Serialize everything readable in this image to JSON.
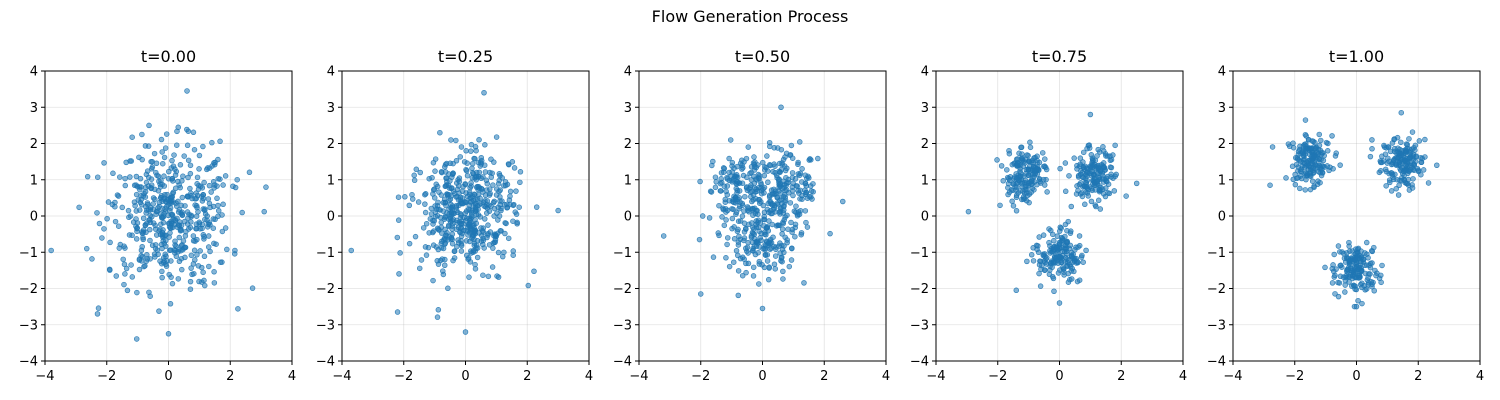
{
  "figure_title": "Flow Generation Process",
  "colors": {
    "point": "#1f77b4"
  },
  "chart_data": [
    {
      "type": "scatter",
      "title": "t=0.00",
      "t": 0.0,
      "xlim": [
        -4,
        4
      ],
      "ylim": [
        -4,
        4
      ],
      "xticks": [
        -4,
        -2,
        0,
        2,
        4
      ],
      "yticks": [
        -4,
        -3,
        -2,
        -1,
        0,
        1,
        2,
        3,
        4
      ],
      "grid": true,
      "tick_labels": {
        "x": [
          "−4",
          "−2",
          "0",
          "2",
          "4"
        ],
        "y": [
          "−4",
          "−3",
          "−2",
          "−1",
          "0",
          "1",
          "2",
          "3",
          "4"
        ]
      },
      "outliers": [
        [
          0.6,
          3.45
        ],
        [
          -3.8,
          -0.95
        ],
        [
          0.0,
          -3.25
        ],
        [
          3.1,
          0.12
        ],
        [
          -2.3,
          -2.7
        ]
      ]
    },
    {
      "type": "scatter",
      "title": "t=0.25",
      "t": 0.25,
      "xlim": [
        -4,
        4
      ],
      "ylim": [
        -4,
        4
      ],
      "xticks": [
        -4,
        -2,
        0,
        2,
        4
      ],
      "yticks": [
        -4,
        -3,
        -2,
        -1,
        0,
        1,
        2,
        3,
        4
      ],
      "grid": true,
      "tick_labels": {
        "x": [
          "−4",
          "−2",
          "0",
          "2",
          "4"
        ],
        "y": [
          "−4",
          "−3",
          "−2",
          "−1",
          "0",
          "1",
          "2",
          "3",
          "4"
        ]
      },
      "outliers": [
        [
          0.6,
          3.4
        ],
        [
          -3.7,
          -0.95
        ],
        [
          0.0,
          -3.2
        ],
        [
          3.0,
          0.15
        ],
        [
          -2.2,
          -2.65
        ]
      ]
    },
    {
      "type": "scatter",
      "title": "t=0.50",
      "t": 0.5,
      "xlim": [
        -4,
        4
      ],
      "ylim": [
        -4,
        4
      ],
      "xticks": [
        -4,
        -2,
        0,
        2,
        4
      ],
      "yticks": [
        -4,
        -3,
        -2,
        -1,
        0,
        1,
        2,
        3,
        4
      ],
      "grid": true,
      "tick_labels": {
        "x": [
          "−4",
          "−2",
          "0",
          "2",
          "4"
        ],
        "y": [
          "−4",
          "−3",
          "−2",
          "−1",
          "0",
          "1",
          "2",
          "3",
          "4"
        ]
      },
      "outliers": [
        [
          0.6,
          3.0
        ],
        [
          -3.2,
          -0.55
        ],
        [
          0.0,
          -2.55
        ],
        [
          2.6,
          0.4
        ],
        [
          -2.0,
          -2.15
        ]
      ]
    },
    {
      "type": "scatter",
      "title": "t=0.75",
      "t": 0.75,
      "xlim": [
        -4,
        4
      ],
      "ylim": [
        -4,
        4
      ],
      "xticks": [
        -4,
        -2,
        0,
        2,
        4
      ],
      "yticks": [
        -4,
        -3,
        -2,
        -1,
        0,
        1,
        2,
        3,
        4
      ],
      "grid": true,
      "tick_labels": {
        "x": [
          "−4",
          "−2",
          "0",
          "2",
          "4"
        ],
        "y": [
          "−4",
          "−3",
          "−2",
          "−1",
          "0",
          "1",
          "2",
          "3",
          "4"
        ]
      },
      "outliers": [
        [
          1.0,
          2.8
        ],
        [
          -2.95,
          0.12
        ],
        [
          0.0,
          -2.4
        ],
        [
          2.5,
          0.9
        ],
        [
          -1.4,
          -2.05
        ]
      ]
    },
    {
      "type": "scatter",
      "title": "t=1.00",
      "t": 1.0,
      "xlim": [
        -4,
        4
      ],
      "ylim": [
        -4,
        4
      ],
      "xticks": [
        -4,
        -2,
        0,
        2,
        4
      ],
      "yticks": [
        -4,
        -3,
        -2,
        -1,
        0,
        1,
        2,
        3,
        4
      ],
      "grid": true,
      "tick_labels": {
        "x": [
          "−4",
          "−2",
          "0",
          "2",
          "4"
        ],
        "y": [
          "−4",
          "−3",
          "−2",
          "−1",
          "0",
          "1",
          "2",
          "3",
          "4"
        ]
      },
      "outliers": [
        [
          1.45,
          2.85
        ],
        [
          -2.8,
          0.85
        ],
        [
          0.0,
          -2.5
        ],
        [
          2.6,
          1.4
        ],
        [
          0.5,
          2.1
        ]
      ]
    }
  ],
  "distribution": {
    "n_points": 500,
    "source": {
      "mean": [
        0,
        0
      ],
      "std": 1.0
    },
    "target_clusters": [
      {
        "center": [
          -1.5,
          1.5
        ],
        "std": 0.35
      },
      {
        "center": [
          1.5,
          1.5
        ],
        "std": 0.35
      },
      {
        "center": [
          0.0,
          -1.5
        ],
        "std": 0.35
      }
    ]
  }
}
